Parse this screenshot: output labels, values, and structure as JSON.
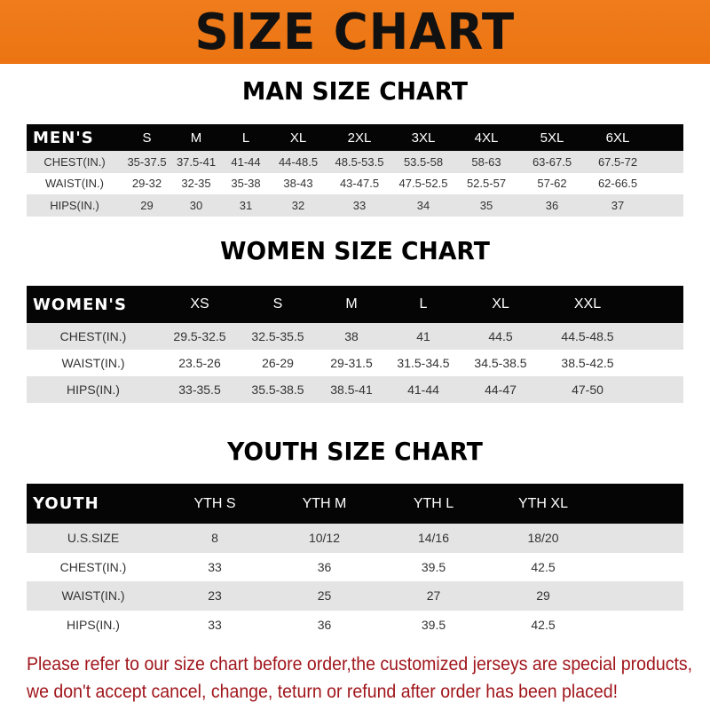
{
  "banner": {
    "title": "SIZE CHART",
    "color": "#ef7a18"
  },
  "men": {
    "title": "MAN SIZE CHART",
    "header": [
      "MEN'S",
      "S",
      "M",
      "L",
      "XL",
      "2XL",
      "3XL",
      "4XL",
      "5XL",
      "6XL"
    ],
    "rows": [
      [
        "CHEST(IN.)",
        "35-37.5",
        "37.5-41",
        "41-44",
        "44-48.5",
        "48.5-53.5",
        "53.5-58",
        "58-63",
        "63-67.5",
        "67.5-72"
      ],
      [
        "WAIST(IN.)",
        "29-32",
        "32-35",
        "35-38",
        "38-43",
        "43-47.5",
        "47.5-52.5",
        "52.5-57",
        "57-62",
        "62-66.5"
      ],
      [
        "HIPS(IN.)",
        "29",
        "30",
        "31",
        "32",
        "33",
        "34",
        "35",
        "36",
        "37"
      ]
    ]
  },
  "women": {
    "title": "WOMEN SIZE CHART",
    "header": [
      "WOMEN'S",
      "XS",
      "S",
      "M",
      "L",
      "XL",
      "XXL"
    ],
    "rows": [
      [
        "CHEST(IN.)",
        "29.5-32.5",
        "32.5-35.5",
        "38",
        "41",
        "44.5",
        "44.5-48.5"
      ],
      [
        "WAIST(IN.)",
        "23.5-26",
        "26-29",
        "29-31.5",
        "31.5-34.5",
        "34.5-38.5",
        "38.5-42.5"
      ],
      [
        "HIPS(IN.)",
        "33-35.5",
        "35.5-38.5",
        "38.5-41",
        "41-44",
        "44-47",
        "47-50"
      ]
    ]
  },
  "youth": {
    "title": "YOUTH SIZE CHART",
    "header": [
      "YOUTH",
      "YTH S",
      "YTH M",
      "YTH L",
      "YTH XL"
    ],
    "rows": [
      [
        "U.S.SIZE",
        "8",
        "10/12",
        "14/16",
        "18/20"
      ],
      [
        "CHEST(IN.)",
        "33",
        "36",
        "39.5",
        "42.5"
      ],
      [
        "WAIST(IN.)",
        "23",
        "25",
        "27",
        "29"
      ],
      [
        "HIPS(IN.)",
        "33",
        "36",
        "39.5",
        "42.5"
      ]
    ]
  },
  "notice": {
    "line1": "Please refer to our size chart before order,the customized jerseys are special products,",
    "line2": "we don't accept cancel, change, teturn or refund after order has been placed!",
    "color": "#a0161c"
  }
}
